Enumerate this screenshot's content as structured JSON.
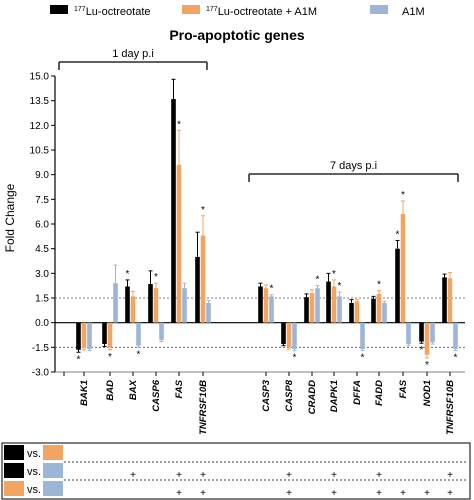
{
  "chart_data": {
    "type": "bar",
    "title": "Pro-apoptotic genes",
    "ylabel": "Fold Change",
    "ylim": [
      -3.0,
      15.0
    ],
    "yticks": [
      "-3.0",
      "-1.5",
      "0.0",
      "1.5",
      "3.0",
      "4.5",
      "6.0",
      "7.5",
      "9.0",
      "10.5",
      "12.0",
      "13.5",
      "15.0"
    ],
    "reference_lines": [
      1.5,
      -1.5
    ],
    "grid": false,
    "legend_position": "top",
    "series": [
      {
        "name": "177Lu-octreotate",
        "name_super": "177",
        "name_main": "Lu-octreotate",
        "color": "#000000"
      },
      {
        "name": "177Lu-octreotate + A1M",
        "name_super": "177",
        "name_main": "Lu-octreotate + A1M",
        "color": "#F2A463"
      },
      {
        "name": "A1M",
        "color": "#9DB6D8"
      }
    ],
    "groups": [
      {
        "label": "1 day p.i",
        "genes": [
          {
            "gene": "BAK1",
            "values": [
              -1.65,
              -1.55,
              -1.6
            ],
            "errors": [
              0.15,
              0.1,
              0.1
            ],
            "stars": [
              "*",
              "",
              ""
            ]
          },
          {
            "gene": "BAD",
            "values": [
              -1.3,
              -1.5,
              2.4
            ],
            "errors": [
              0.15,
              0.15,
              1.1
            ],
            "stars": [
              "",
              "*",
              ""
            ]
          },
          {
            "gene": "BAX",
            "values": [
              2.2,
              1.6,
              -1.4
            ],
            "errors": [
              0.4,
              0.3,
              0.1
            ],
            "stars": [
              "*",
              "",
              "*"
            ]
          },
          {
            "gene": "CASP6",
            "values": [
              2.35,
              2.1,
              -1.05
            ],
            "errors": [
              0.8,
              0.3,
              0.1
            ],
            "stars": [
              "",
              "*",
              ""
            ]
          },
          {
            "gene": "FAS",
            "values": [
              13.6,
              9.6,
              2.1
            ],
            "errors": [
              1.2,
              2.1,
              0.3
            ],
            "stars": [
              "",
              "*",
              ""
            ]
          },
          {
            "gene": "TNFRSF10B",
            "values": [
              4.0,
              5.3,
              1.2
            ],
            "errors": [
              1.5,
              1.2,
              0.15
            ],
            "stars": [
              "",
              "*",
              ""
            ]
          }
        ]
      },
      {
        "label": "7 days p.i",
        "genes": [
          {
            "gene": "CASP3",
            "values": [
              2.2,
              2.1,
              1.6
            ],
            "errors": [
              0.2,
              0.2,
              0.1
            ],
            "stars": [
              "",
              "",
              "*"
            ]
          },
          {
            "gene": "CASP8",
            "values": [
              -1.3,
              -1.5,
              -1.6
            ],
            "errors": [
              0.1,
              0.1,
              0.1
            ],
            "stars": [
              "",
              "",
              "*"
            ]
          },
          {
            "gene": "CRADD",
            "values": [
              1.55,
              1.8,
              2.1
            ],
            "errors": [
              0.2,
              0.2,
              0.15
            ],
            "stars": [
              "",
              "",
              "*"
            ]
          },
          {
            "gene": "DAPK1",
            "values": [
              2.5,
              2.2,
              1.6
            ],
            "errors": [
              0.5,
              0.4,
              0.25
            ],
            "stars": [
              "",
              "*",
              "*"
            ]
          },
          {
            "gene": "DFFA",
            "values": [
              1.2,
              1.3,
              -1.6
            ],
            "errors": [
              0.2,
              0.1,
              0.1
            ],
            "stars": [
              "",
              "",
              "*"
            ]
          },
          {
            "gene": "FADD",
            "values": [
              1.45,
              1.75,
              1.2
            ],
            "errors": [
              0.15,
              0.2,
              0.1
            ],
            "stars": [
              "",
              "*",
              ""
            ]
          },
          {
            "gene": "FAS",
            "values": [
              4.5,
              6.6,
              -1.3
            ],
            "errors": [
              0.5,
              0.8,
              0.1
            ],
            "stars": [
              "*",
              "*",
              ""
            ]
          },
          {
            "gene": "NOD1",
            "values": [
              -1.15,
              -1.95,
              -1.2
            ],
            "errors": [
              0.1,
              0.2,
              0.1
            ],
            "stars": [
              "*",
              "*",
              ""
            ]
          },
          {
            "gene": "TNFRSF10B",
            "values": [
              2.75,
              2.7,
              -1.6
            ],
            "errors": [
              0.2,
              0.35,
              0.1
            ],
            "stars": [
              "",
              "",
              "*"
            ]
          }
        ]
      }
    ]
  },
  "comparison_table": {
    "vs_label": "vs.",
    "rows": [
      {
        "left_color": "#000000",
        "right_color": "#F2A463",
        "marks": [
          "",
          "",
          "",
          "",
          "",
          "",
          "",
          "",
          "",
          "",
          "",
          "",
          "",
          "",
          ""
        ]
      },
      {
        "left_color": "#000000",
        "right_color": "#9DB6D8",
        "marks": [
          "",
          "",
          "+",
          "",
          "+",
          "+",
          "",
          "+",
          "",
          "+",
          "",
          "+",
          "",
          "",
          "+"
        ]
      },
      {
        "left_color": "#F2A463",
        "right_color": "#9DB6D8",
        "marks": [
          "",
          "",
          "",
          "",
          "+",
          "+",
          "",
          "+",
          "",
          "+",
          "",
          "+",
          "+",
          "+",
          "+"
        ]
      }
    ]
  }
}
